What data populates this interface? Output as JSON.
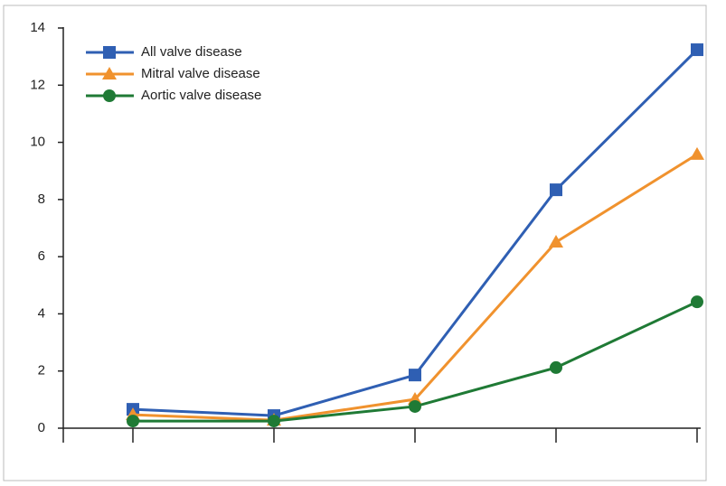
{
  "chart_data": {
    "type": "line",
    "categories": [
      null,
      null,
      null,
      null,
      null
    ],
    "series": [
      {
        "name": "All valve disease",
        "color": "#2f5fb3",
        "marker": "square",
        "values": [
          0.66,
          0.44,
          1.86,
          8.34,
          13.24
        ]
      },
      {
        "name": "Mitral valve disease",
        "color": "#f0922e",
        "marker": "triangle",
        "values": [
          0.47,
          0.28,
          1.01,
          6.51,
          9.58
        ]
      },
      {
        "name": "Aortic valve disease",
        "color": "#1f7a35",
        "marker": "circle",
        "values": [
          0.25,
          0.25,
          0.76,
          2.12,
          4.42
        ]
      }
    ],
    "ylim": [
      0,
      14
    ],
    "yticks": [
      0,
      2,
      4,
      6,
      8,
      10,
      12,
      14
    ],
    "legend": "upper-left",
    "grid": false
  }
}
